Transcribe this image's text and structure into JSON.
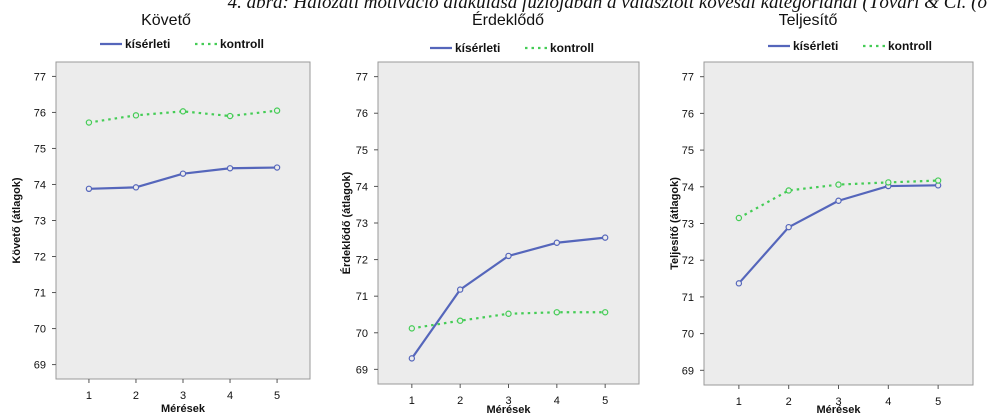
{
  "caption": "4. ábra: Hálózati motiváció alakulása fúziójában a választott kövesdi kategóriánál (Tóvári & Cl. (ö",
  "colors": {
    "kiserleti": "#5566bb",
    "kontroll": "#44cc55",
    "plot_bg": "#ececec"
  },
  "chart_data": [
    {
      "type": "line",
      "title": "Követő",
      "xlabel": "Mérések",
      "ylabel": "Követő (átlagok)",
      "x": [
        1,
        2,
        3,
        4,
        5
      ],
      "xlim": [
        0.3,
        5.7
      ],
      "ylim": [
        68.6,
        77.4
      ],
      "yticks": [
        69,
        70,
        71,
        72,
        73,
        74,
        75,
        76,
        77
      ],
      "legend_position": "top",
      "grid": false,
      "series": [
        {
          "name": "kísérleti",
          "values": [
            73.88,
            73.92,
            74.3,
            74.45,
            74.47
          ]
        },
        {
          "name": "kontroll",
          "values": [
            75.72,
            75.92,
            76.03,
            75.9,
            76.05
          ]
        }
      ]
    },
    {
      "type": "line",
      "title": "Érdeklődő",
      "xlabel": "Mérések",
      "ylabel": "Érdeklődő (átlagok)",
      "x": [
        1,
        2,
        3,
        4,
        5
      ],
      "xlim": [
        0.3,
        5.7
      ],
      "ylim": [
        68.6,
        77.4
      ],
      "yticks": [
        69,
        70,
        71,
        72,
        73,
        74,
        75,
        76,
        77
      ],
      "legend_position": "top",
      "grid": false,
      "series": [
        {
          "name": "kísérleti",
          "values": [
            69.3,
            71.18,
            72.1,
            72.46,
            72.6
          ]
        },
        {
          "name": "kontroll",
          "values": [
            70.12,
            70.33,
            70.52,
            70.56,
            70.56
          ]
        }
      ]
    },
    {
      "type": "line",
      "title": "Teljesítő",
      "xlabel": "Mérések",
      "ylabel": "Teljesítő (átlagok)",
      "x": [
        1,
        2,
        3,
        4,
        5
      ],
      "xlim": [
        0.3,
        5.7
      ],
      "ylim": [
        68.6,
        77.4
      ],
      "yticks": [
        69,
        70,
        71,
        72,
        73,
        74,
        75,
        76,
        77
      ],
      "legend_position": "top",
      "grid": false,
      "series": [
        {
          "name": "kísérleti",
          "values": [
            71.37,
            72.9,
            73.62,
            74.02,
            74.04
          ]
        },
        {
          "name": "kontroll",
          "values": [
            73.15,
            73.9,
            74.06,
            74.12,
            74.17
          ]
        }
      ]
    }
  ]
}
